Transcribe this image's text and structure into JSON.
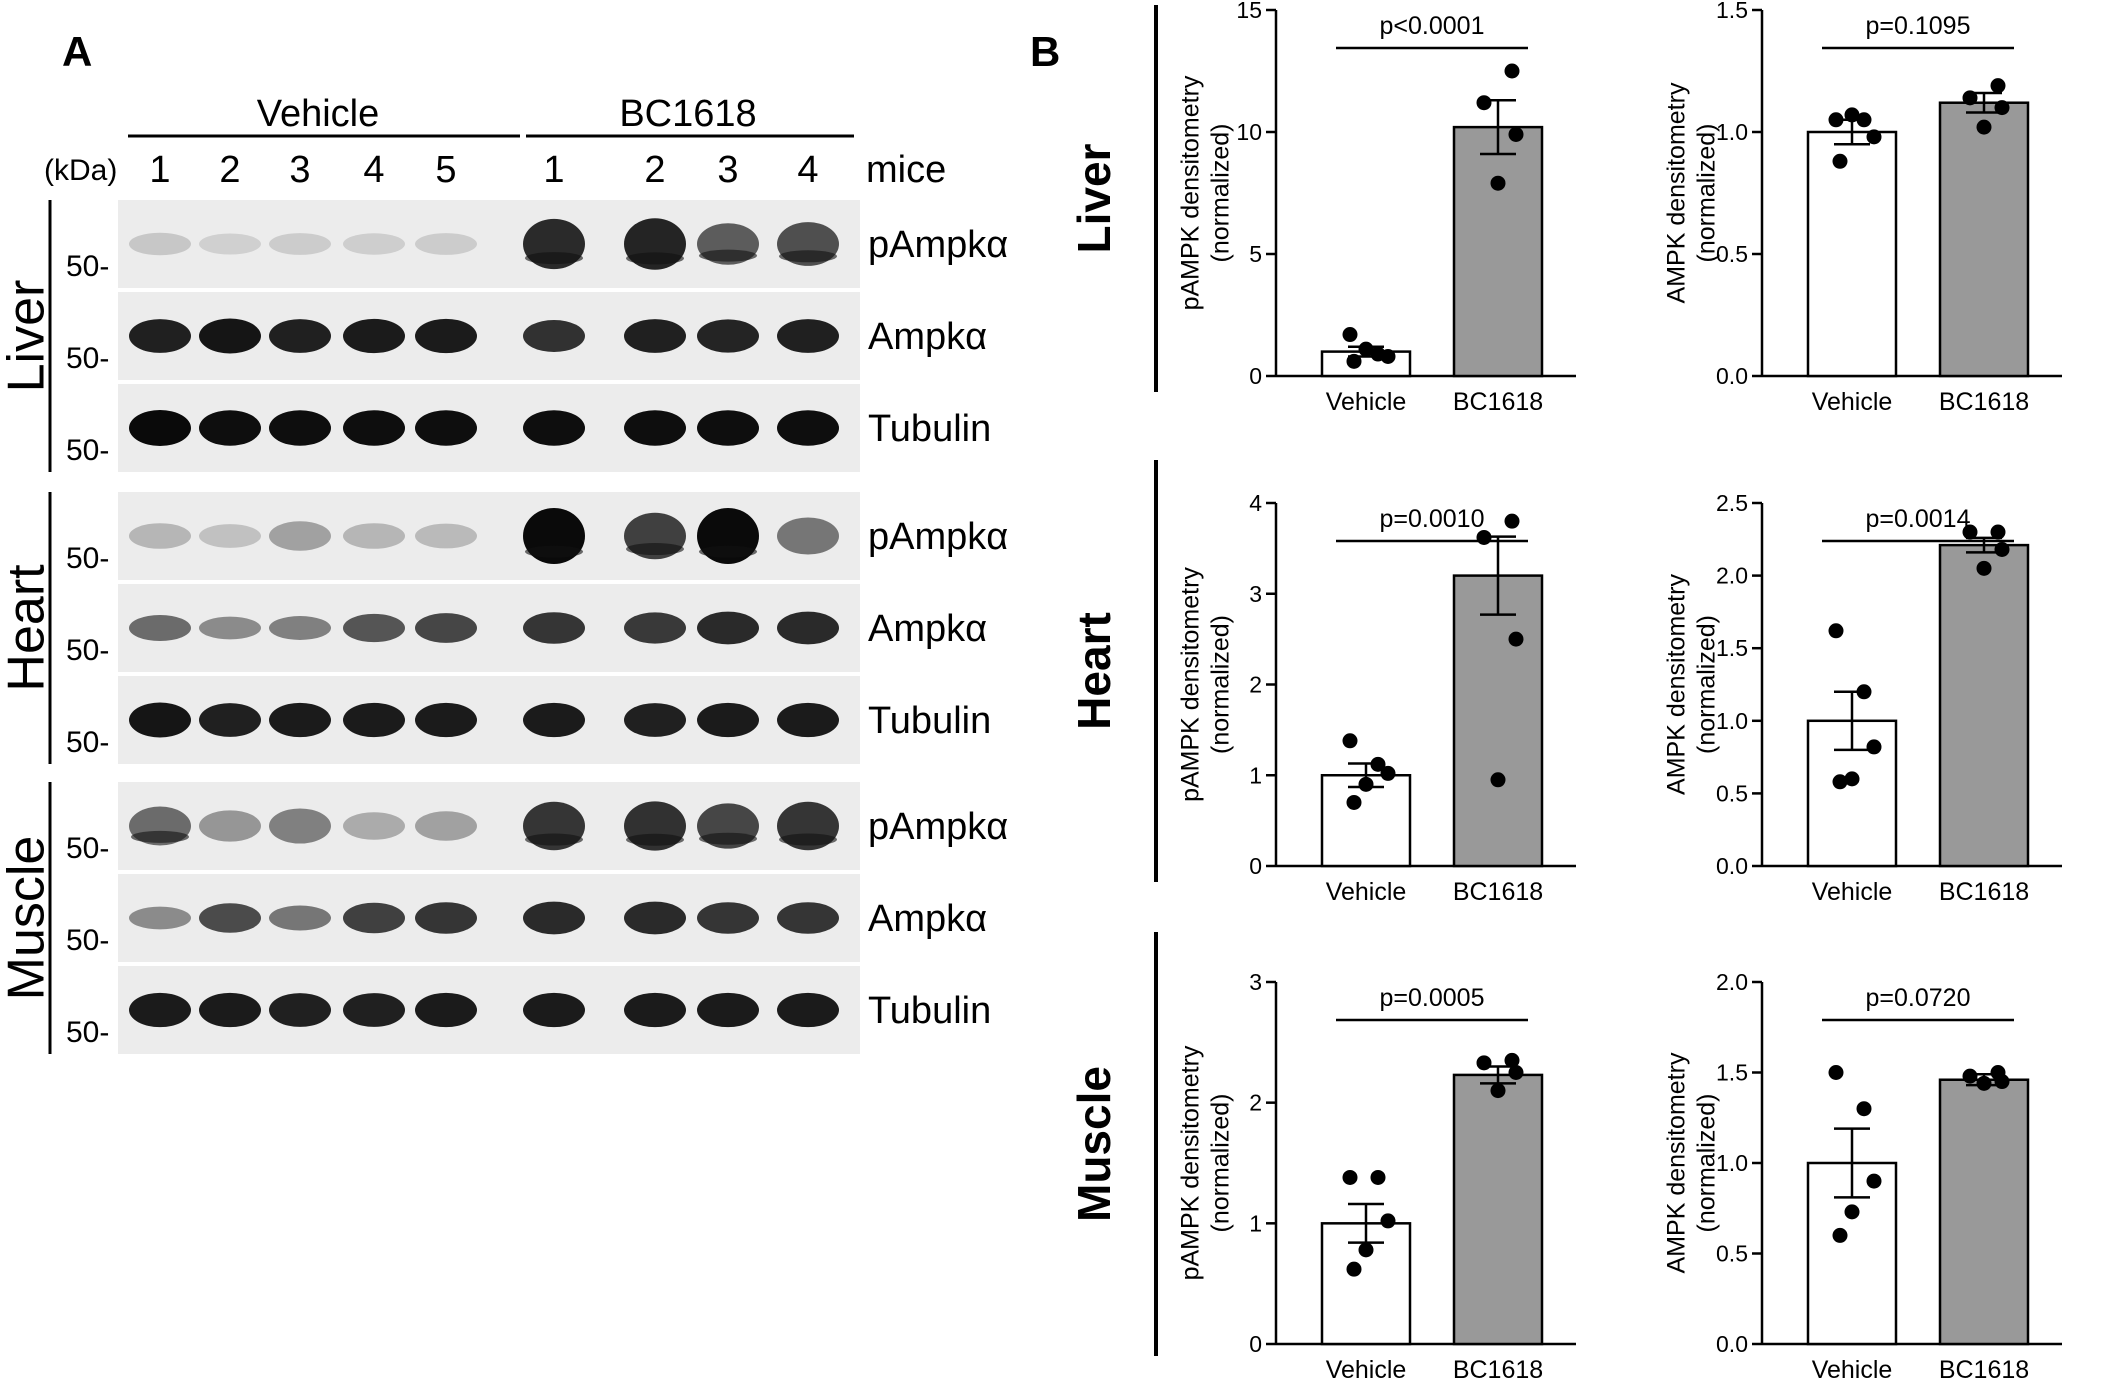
{
  "figure": {
    "panel_a_label": "A",
    "panel_b_label": "B"
  },
  "blot": {
    "groups": [
      "Vehicle",
      "BC1618"
    ],
    "kda_label": "(kDa)",
    "mice_label": "mice",
    "lane_numbers": [
      "1",
      "2",
      "3",
      "4",
      "5",
      "1",
      "2",
      "3",
      "4"
    ],
    "marker": "50-",
    "tissues": [
      {
        "name": "Liver",
        "rows": [
          {
            "label": "pAmpkα",
            "intensities": [
              0.12,
              0.08,
              0.1,
              0.09,
              0.1,
              0.85,
              0.88,
              0.62,
              0.68
            ]
          },
          {
            "label": "Ampkα",
            "intensities": [
              0.9,
              0.95,
              0.9,
              0.92,
              0.92,
              0.82,
              0.9,
              0.88,
              0.9
            ]
          },
          {
            "label": "Tubulin",
            "intensities": [
              1.0,
              0.98,
              0.98,
              0.98,
              0.98,
              0.98,
              0.98,
              0.98,
              0.98
            ]
          }
        ]
      },
      {
        "name": "Heart",
        "rows": [
          {
            "label": "pAmpkα",
            "intensities": [
              0.2,
              0.15,
              0.3,
              0.2,
              0.18,
              1.0,
              0.75,
              1.0,
              0.5
            ]
          },
          {
            "label": "Ampkα",
            "intensities": [
              0.55,
              0.4,
              0.45,
              0.65,
              0.72,
              0.8,
              0.78,
              0.85,
              0.85
            ]
          },
          {
            "label": "Tubulin",
            "intensities": [
              0.95,
              0.9,
              0.92,
              0.92,
              0.92,
              0.92,
              0.9,
              0.92,
              0.92
            ]
          }
        ]
      },
      {
        "name": "Muscle",
        "rows": [
          {
            "label": "pAmpkα",
            "intensities": [
              0.55,
              0.35,
              0.45,
              0.25,
              0.3,
              0.8,
              0.82,
              0.72,
              0.8
            ]
          },
          {
            "label": "Ampkα",
            "intensities": [
              0.4,
              0.7,
              0.5,
              0.75,
              0.8,
              0.85,
              0.85,
              0.8,
              0.8
            ]
          },
          {
            "label": "Tubulin",
            "intensities": [
              0.92,
              0.92,
              0.9,
              0.9,
              0.92,
              0.92,
              0.92,
              0.92,
              0.92
            ]
          }
        ]
      }
    ]
  },
  "chart_data": [
    {
      "type": "bar",
      "tissue": "Liver",
      "ylabel": [
        "pAMPK densitometry",
        "(normalized)"
      ],
      "categories": [
        "Vehicle",
        "BC1618"
      ],
      "values": [
        1.0,
        10.2
      ],
      "sem": [
        0.2,
        1.1
      ],
      "points": [
        [
          1.7,
          0.9,
          0.8,
          1.1,
          0.6
        ],
        [
          12.5,
          11.2,
          9.9,
          7.9
        ]
      ],
      "ylim": [
        0,
        15
      ],
      "yticks": [
        0,
        5,
        10,
        15
      ],
      "pvalue": "p<0.0001"
    },
    {
      "type": "bar",
      "tissue": "Liver",
      "ylabel": [
        "AMPK densitometry",
        "(normalized)"
      ],
      "categories": [
        "Vehicle",
        "BC1618"
      ],
      "values": [
        1.0,
        1.12
      ],
      "sem": [
        0.05,
        0.04
      ],
      "points": [
        [
          1.05,
          1.05,
          0.98,
          1.07,
          0.88
        ],
        [
          1.19,
          1.14,
          1.1,
          1.02
        ]
      ],
      "ylim": [
        0,
        1.5
      ],
      "yticks": [
        0.0,
        0.5,
        1.0,
        1.5
      ],
      "tick_labels": [
        "0.0",
        "0.5",
        "1.0",
        "1.5"
      ],
      "pvalue": "p=0.1095"
    },
    {
      "type": "bar",
      "tissue": "Heart",
      "ylabel": [
        "pAMPK densitometry",
        "(normalized)"
      ],
      "categories": [
        "Vehicle",
        "BC1618"
      ],
      "values": [
        1.0,
        3.2
      ],
      "sem": [
        0.13,
        0.43
      ],
      "points": [
        [
          1.38,
          1.12,
          1.02,
          0.9,
          0.7
        ],
        [
          3.8,
          3.62,
          2.5,
          0.95
        ]
      ],
      "ylim": [
        0,
        4
      ],
      "yticks": [
        0,
        1,
        2,
        3,
        4
      ],
      "pvalue": "p=0.0010"
    },
    {
      "type": "bar",
      "tissue": "Heart",
      "ylabel": [
        "AMPK densitometry",
        "(normalized)"
      ],
      "categories": [
        "Vehicle",
        "BC1618"
      ],
      "values": [
        1.0,
        2.21
      ],
      "sem": [
        0.2,
        0.05
      ],
      "points": [
        [
          1.62,
          1.2,
          0.82,
          0.6,
          0.58
        ],
        [
          2.3,
          2.3,
          2.18,
          2.05
        ]
      ],
      "ylim": [
        0,
        2.5
      ],
      "yticks": [
        0.0,
        0.5,
        1.0,
        1.5,
        2.0,
        2.5
      ],
      "tick_labels": [
        "0.0",
        "0.5",
        "1.0",
        "1.5",
        "2.0",
        "2.5"
      ],
      "pvalue": "p=0.0014"
    },
    {
      "type": "bar",
      "tissue": "Muscle",
      "ylabel": [
        "pAMPK densitometry",
        "(normalized)"
      ],
      "categories": [
        "Vehicle",
        "BC1618"
      ],
      "values": [
        1.0,
        2.23
      ],
      "sem": [
        0.16,
        0.07
      ],
      "points": [
        [
          1.38,
          1.38,
          1.02,
          0.78,
          0.62
        ],
        [
          2.35,
          2.33,
          2.25,
          2.1
        ]
      ],
      "ylim": [
        0,
        3
      ],
      "yticks": [
        0,
        1,
        2,
        3
      ],
      "pvalue": "p=0.0005"
    },
    {
      "type": "bar",
      "tissue": "Muscle",
      "ylabel": [
        "AMPK densitometry",
        "(normalized)"
      ],
      "categories": [
        "Vehicle",
        "BC1618"
      ],
      "values": [
        1.0,
        1.46
      ],
      "sem": [
        0.19,
        0.03
      ],
      "points": [
        [
          1.5,
          1.3,
          0.9,
          0.73,
          0.6
        ],
        [
          1.5,
          1.48,
          1.45,
          1.44
        ]
      ],
      "ylim": [
        0,
        2.0
      ],
      "yticks": [
        0.0,
        0.5,
        1.0,
        1.5,
        2.0
      ],
      "tick_labels": [
        "0.0",
        "0.5",
        "1.0",
        "1.5",
        "2.0"
      ],
      "pvalue": "p=0.0720"
    }
  ]
}
